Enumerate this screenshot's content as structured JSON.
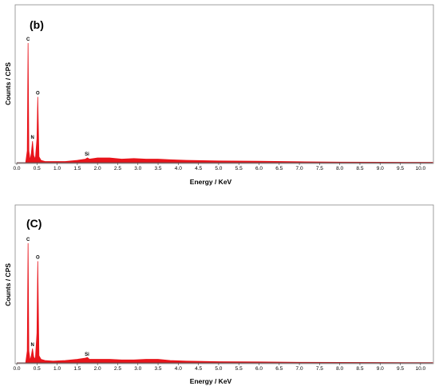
{
  "chart_data": [
    {
      "type": "area",
      "panel_label": "(b)",
      "xlabel": "Energy / KeV",
      "ylabel": "Counts / CPS",
      "xlim": [
        0.0,
        10.3
      ],
      "ylim": [
        0,
        100
      ],
      "x_ticks": [
        "0.0",
        "0.5",
        "1.0",
        "1.5",
        "2.0",
        "2.5",
        "3.0",
        "3.5",
        "4.0",
        "4.5",
        "5.0",
        "5.5",
        "6.0",
        "6.5",
        "7.0",
        "7.5",
        "8.0",
        "8.5",
        "9.0",
        "9.5",
        "10.0"
      ],
      "fill_color": "#e8141b",
      "peaks": [
        {
          "element": "C",
          "energy": 0.28,
          "value": 100
        },
        {
          "element": "N",
          "energy": 0.39,
          "value": 18
        },
        {
          "element": "O",
          "energy": 0.52,
          "value": 55
        },
        {
          "element": "Si",
          "energy": 1.74,
          "value": 4
        }
      ],
      "series": [
        {
          "x": [
            0.0,
            0.15,
            0.22,
            0.26,
            0.28,
            0.3,
            0.33,
            0.36,
            0.39,
            0.42,
            0.46,
            0.5,
            0.52,
            0.55,
            0.6,
            0.7,
            0.9,
            1.2,
            1.5,
            1.7,
            1.75,
            1.8,
            2.0,
            2.3,
            2.6,
            2.9,
            3.2,
            3.5,
            3.8,
            4.2,
            5.0,
            6.0,
            7.0,
            8.0,
            9.0,
            10.0,
            10.3
          ],
          "y": [
            0,
            0,
            0,
            10,
            100,
            10,
            2,
            8,
            18,
            6,
            3,
            20,
            55,
            5,
            2,
            1,
            1,
            1,
            2,
            3,
            4,
            3,
            4,
            4,
            3,
            3.5,
            3,
            3,
            2.5,
            2,
            1.5,
            1.2,
            0.8,
            0.5,
            0.4,
            0.3,
            0.3
          ]
        }
      ]
    },
    {
      "type": "area",
      "panel_label": "(C)",
      "xlabel": "Energy / KeV",
      "ylabel": "Counts / CPS",
      "xlim": [
        0.0,
        10.3
      ],
      "ylim": [
        0,
        100
      ],
      "x_ticks": [
        "0.0",
        "0.5",
        "1.0",
        "1.5",
        "2.0",
        "2.5",
        "3.0",
        "3.5",
        "4.0",
        "4.5",
        "5.0",
        "5.5",
        "6.0",
        "6.5",
        "7.0",
        "7.5",
        "8.0",
        "8.5",
        "9.0",
        "9.5",
        "10.0"
      ],
      "fill_color": "#e8141b",
      "peaks": [
        {
          "element": "C",
          "energy": 0.28,
          "value": 100
        },
        {
          "element": "N",
          "energy": 0.39,
          "value": 12
        },
        {
          "element": "O",
          "energy": 0.52,
          "value": 85
        },
        {
          "element": "Si",
          "energy": 1.74,
          "value": 4
        }
      ],
      "series": [
        {
          "x": [
            0.0,
            0.15,
            0.22,
            0.26,
            0.28,
            0.3,
            0.33,
            0.36,
            0.39,
            0.42,
            0.46,
            0.5,
            0.52,
            0.55,
            0.6,
            0.7,
            0.9,
            1.2,
            1.5,
            1.7,
            1.75,
            1.8,
            2.0,
            2.3,
            2.6,
            2.9,
            3.2,
            3.5,
            3.8,
            4.2,
            5.0,
            6.0,
            7.0,
            8.0,
            9.0,
            10.0,
            10.3
          ],
          "y": [
            0,
            0,
            0,
            10,
            100,
            10,
            2,
            6,
            12,
            5,
            3,
            25,
            85,
            6,
            3,
            2,
            1.5,
            2,
            3,
            4,
            4.5,
            3,
            3,
            3,
            2.5,
            2.5,
            3,
            3,
            2,
            1.5,
            1,
            0.8,
            0.5,
            0.4,
            0.3,
            0.2,
            0.2
          ]
        }
      ]
    }
  ]
}
